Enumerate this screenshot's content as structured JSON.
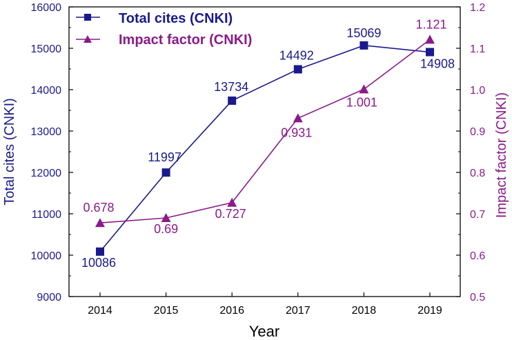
{
  "chart_data": {
    "type": "line",
    "x": [
      "2014",
      "2015",
      "2016",
      "2017",
      "2018",
      "2019"
    ],
    "xlabel": "Year",
    "y_left": {
      "label": "Total cites (CNKI)",
      "lim": [
        9000,
        16000
      ],
      "ticks": [
        "9000",
        "10000",
        "11000",
        "12000",
        "13000",
        "14000",
        "15000",
        "16000"
      ],
      "color": "#1a1a8c"
    },
    "y_right": {
      "label": "Impact factor (CNKI)",
      "lim": [
        0.5,
        1.2
      ],
      "ticks": [
        "0.5",
        "0.6",
        "0.7",
        "0.8",
        "0.9",
        "1.0",
        "1.1",
        "1.2"
      ],
      "color": "#8b1a8b"
    },
    "series": [
      {
        "name": "Total cites (CNKI)",
        "axis": "left",
        "marker": "square",
        "color": "#1a1a8c",
        "values": [
          10086,
          11997,
          13734,
          14492,
          15069,
          14908
        ],
        "labels": [
          "10086",
          "11997",
          "13734",
          "14492",
          "15069",
          "14908"
        ]
      },
      {
        "name": "Impact factor (CNKI)",
        "axis": "right",
        "marker": "triangle",
        "color": "#8b1a8b",
        "values": [
          0.678,
          0.69,
          0.727,
          0.931,
          1.001,
          1.121
        ],
        "labels": [
          "0.678",
          "0.69",
          "0.727",
          "0.931",
          "1.001",
          "1.121"
        ]
      }
    ],
    "legend": "top-left",
    "grid": false
  }
}
